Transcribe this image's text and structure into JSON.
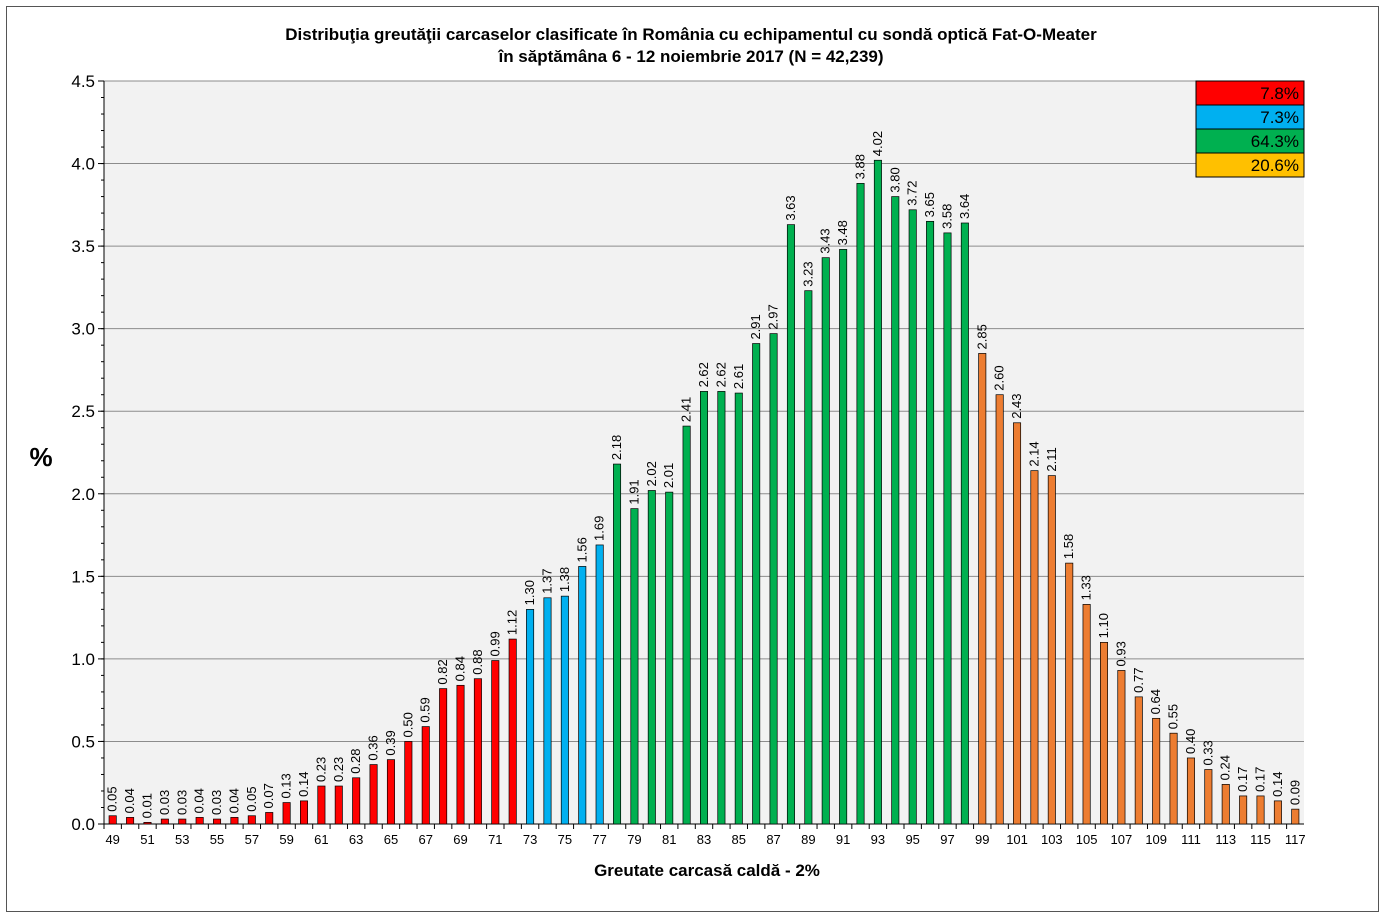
{
  "chart_data": {
    "type": "bar",
    "title_line1": "Distribuţia greutăţii carcaselor clasificate în România cu echipamentul cu sondă optică Fat-O-Meater",
    "title_line2": "în săptămâna 6 - 12 noiembrie 2017 (N = 42,239)",
    "ylabel": "%",
    "xlabel": "Greutate carcasă caldă - 2%",
    "ylim": [
      0,
      4.5
    ],
    "yticks": [
      "0.0",
      "0.5",
      "1.0",
      "1.5",
      "2.0",
      "2.5",
      "3.0",
      "3.5",
      "4.0",
      "4.5"
    ],
    "grid": true,
    "categories": [
      49,
      50,
      51,
      52,
      53,
      54,
      55,
      56,
      57,
      58,
      59,
      60,
      61,
      62,
      63,
      64,
      65,
      66,
      67,
      68,
      69,
      70,
      71,
      72,
      73,
      74,
      75,
      76,
      77,
      78,
      79,
      80,
      81,
      82,
      83,
      84,
      85,
      86,
      87,
      88,
      89,
      90,
      91,
      92,
      93,
      94,
      95,
      96,
      97,
      98,
      99,
      100,
      101,
      102,
      103,
      104,
      105,
      106,
      107,
      108,
      109,
      110,
      111,
      112,
      113,
      114,
      115,
      116,
      117
    ],
    "values": [
      0.05,
      0.04,
      0.01,
      0.03,
      0.03,
      0.04,
      0.03,
      0.04,
      0.05,
      0.07,
      0.13,
      0.14,
      0.23,
      0.23,
      0.28,
      0.36,
      0.39,
      0.5,
      0.59,
      0.82,
      0.84,
      0.88,
      0.99,
      1.12,
      1.3,
      1.37,
      1.38,
      1.56,
      1.69,
      2.18,
      1.91,
      2.02,
      2.01,
      2.41,
      2.62,
      2.62,
      2.61,
      2.91,
      2.97,
      3.63,
      3.23,
      3.43,
      3.48,
      3.88,
      4.02,
      3.8,
      3.72,
      3.65,
      3.58,
      3.64,
      2.85,
      2.6,
      2.43,
      2.14,
      2.11,
      1.58,
      1.33,
      1.1,
      0.93,
      0.77,
      0.64,
      0.55,
      0.4,
      0.33,
      0.24,
      0.17,
      0.17,
      0.14,
      0.09
    ],
    "value_labels": [
      "0.05",
      "0.04",
      "0.01",
      "0.03",
      "0.03",
      "0.04",
      "0.03",
      "0.04",
      "0.05",
      "0.07",
      "0.13",
      "0.14",
      "0.23",
      "0.23",
      "0.28",
      "0.36",
      "0.39",
      "0.50",
      "0.59",
      "0.82",
      "0.84",
      "0.88",
      "0.99",
      "1.12",
      "1.30",
      "1.37",
      "1.38",
      "1.56",
      "1.69",
      "2.18",
      "1.91",
      "2.02",
      "2.01",
      "2.41",
      "2.62",
      "2.62",
      "2.61",
      "2.91",
      "2.97",
      "3.63",
      "3.23",
      "3.43",
      "3.48",
      "3.88",
      "4.02",
      "3.80",
      "3.72",
      "3.65",
      "3.58",
      "3.64",
      "2.85",
      "2.60",
      "2.43",
      "2.14",
      "2.11",
      "1.58",
      "1.33",
      "1.10",
      "0.93",
      "0.77",
      "0.64",
      "0.55",
      "0.40",
      "0.33",
      "0.24",
      "0.17",
      "0.17",
      "0.14",
      "0.09"
    ],
    "groups": [
      {
        "from": 49,
        "to": 72,
        "color": "#ff0000",
        "share": "7.8%"
      },
      {
        "from": 73,
        "to": 77,
        "color": "#00b0f0",
        "share": "7.3%"
      },
      {
        "from": 78,
        "to": 98,
        "color": "#00b050",
        "share": "64.3%"
      },
      {
        "from": 99,
        "to": 117,
        "color": "#ed7d31",
        "share": "20.6%"
      }
    ],
    "legend": {
      "placement": "top-right",
      "items": [
        {
          "text": "7.8%",
          "color": "#ff0000"
        },
        {
          "text": "7.3%",
          "color": "#00b0f0"
        },
        {
          "text": "64.3%",
          "color": "#00b050"
        },
        {
          "text": "20.6%",
          "color": "#ffc000"
        }
      ]
    },
    "plot_background": "#f2f2f2"
  }
}
